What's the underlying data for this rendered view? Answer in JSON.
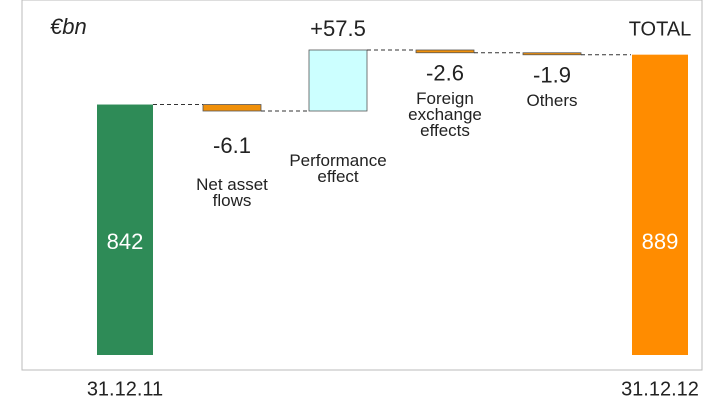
{
  "chart_data": {
    "type": "waterfall",
    "unit": "€bn",
    "total_label": "TOTAL",
    "categories": [
      "31.12.11",
      "Net asset flows",
      "Performance effect",
      "Foreign exchange effects",
      "Others",
      "31.12.12"
    ],
    "values": [
      842,
      -6.1,
      57.5,
      -2.6,
      -1.9,
      889
    ],
    "value_labels": [
      "842",
      "-6.1",
      "+57.5",
      "-2.6",
      "-1.9",
      "889"
    ],
    "colors": [
      "#2e8b57",
      "#f0900a",
      "#ccffff",
      "#f0900a",
      "#f0900a",
      "#ff8c00"
    ]
  }
}
